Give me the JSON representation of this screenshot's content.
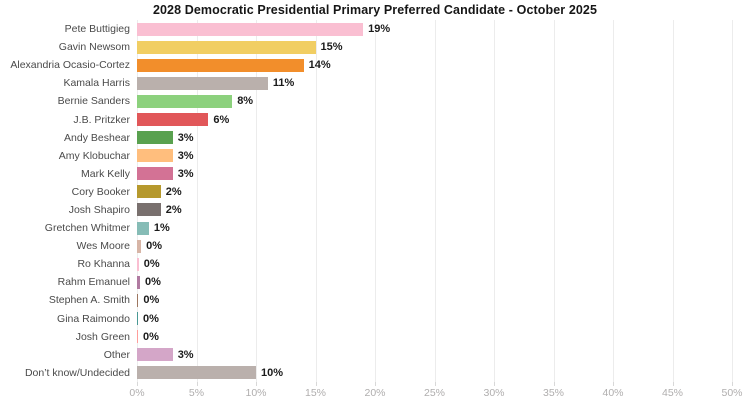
{
  "title": "2028 Democratic Presidential Primary Preferred Candidate - October 2025",
  "chart_data": {
    "type": "bar",
    "orientation": "horizontal",
    "title": "2028 Democratic Presidential Primary Preferred Candidate - October 2025",
    "categories": [
      "Pete Buttigieg",
      "Gavin Newsom",
      "Alexandria Ocasio-Cortez",
      "Kamala Harris",
      "Bernie Sanders",
      "J.B. Pritzker",
      "Andy Beshear",
      "Amy Klobuchar",
      "Mark Kelly",
      "Cory Booker",
      "Josh Shapiro",
      "Gretchen Whitmer",
      "Wes Moore",
      "Ro Khanna",
      "Rahm Emanuel",
      "Stephen A. Smith",
      "Gina Raimondo",
      "Josh Green",
      "Other",
      "Don’t know/Undecided"
    ],
    "values": [
      19,
      15,
      14,
      11,
      8,
      6,
      3,
      3,
      3,
      2,
      2,
      1,
      0,
      0,
      0,
      0,
      0,
      0,
      3,
      10
    ],
    "values_est": [
      19,
      15,
      14,
      11,
      8,
      6,
      3,
      3,
      3,
      2,
      2,
      1,
      0.35,
      0.15,
      0.25,
      0.12,
      0.08,
      0.08,
      3,
      10
    ],
    "value_labels": [
      "19%",
      "15%",
      "14%",
      "11%",
      "8%",
      "6%",
      "3%",
      "3%",
      "3%",
      "2%",
      "2%",
      "1%",
      "0%",
      "0%",
      "0%",
      "0%",
      "0%",
      "0%",
      "3%",
      "10%"
    ],
    "bar_colors": [
      "#FABFD2",
      "#F1CE63",
      "#F28E2B",
      "#BAB0AC",
      "#8CD17D",
      "#E15759",
      "#59A14F",
      "#FFBE7D",
      "#D37295",
      "#B6992D",
      "#79706E",
      "#86BCB6",
      "#D7B5A6",
      "#FABFD2",
      "#B07AA1",
      "#9D7660",
      "#499894",
      "#FF9D9A",
      "#D4A6C8",
      "#BAB0AC"
    ],
    "xlabel": "",
    "ylabel": "",
    "xlim": [
      0,
      50
    ],
    "x_ticks": [
      "0%",
      "5%",
      "10%",
      "15%",
      "20%",
      "25%",
      "30%",
      "35%",
      "40%",
      "45%",
      "50%"
    ],
    "x_tick_values": [
      0,
      5,
      10,
      15,
      20,
      25,
      30,
      35,
      40,
      45,
      50
    ],
    "grid": "vertical",
    "legend": "none",
    "background": "#ffffff"
  },
  "style_colors": {
    "title_text": "#161616",
    "category_text": "#4a4a4a",
    "value_text": "#1b1b1b",
    "tick_text": "#b0aeae",
    "gridline": "#ececec"
  }
}
